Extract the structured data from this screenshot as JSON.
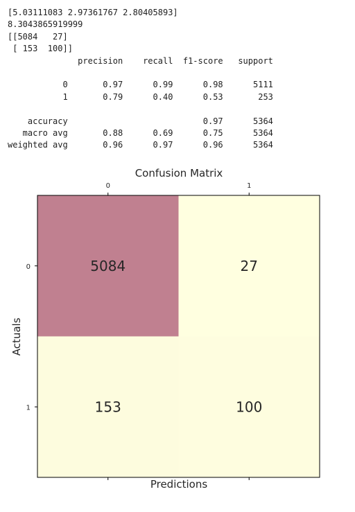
{
  "output": {
    "lines": [
      "[5.03111083 2.97361767 2.80405893]",
      "8.3043865919999",
      "[[5084   27]",
      " [ 153  100]]",
      "              precision    recall  f1-score   support",
      "",
      "           0       0.97      0.99      0.98      5111",
      "           1       0.79      0.40      0.53       253",
      "",
      "    accuracy                           0.97      5364",
      "   macro avg       0.88      0.69      0.75      5364",
      "weighted avg       0.96      0.97      0.96      5364"
    ]
  },
  "chart_data": {
    "type": "heatmap",
    "title": "Confusion Matrix",
    "xlabel": "Predictions",
    "ylabel": "Actuals",
    "x_ticks": [
      "0",
      "1"
    ],
    "y_ticks": [
      "0",
      "1"
    ],
    "matrix": [
      [
        5084,
        27
      ],
      [
        153,
        100
      ]
    ],
    "colormap": {
      "low": "#ffffe0",
      "high": "#c08090"
    }
  }
}
